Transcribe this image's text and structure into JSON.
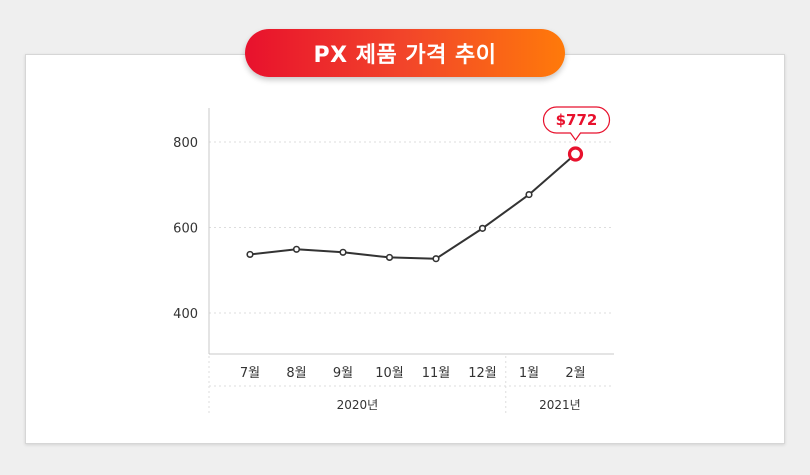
{
  "title": "PX 제품 가격 추이",
  "chart_data": {
    "type": "line",
    "categories": [
      "7월",
      "8월",
      "9월",
      "10월",
      "11월",
      "12월",
      "1월",
      "2월"
    ],
    "year_groups": [
      {
        "label": "2020년",
        "months": [
          "7월",
          "8월",
          "9월",
          "10월",
          "11월",
          "12월"
        ]
      },
      {
        "label": "2021년",
        "months": [
          "1월",
          "2월"
        ]
      }
    ],
    "series": [
      {
        "values": [
          537,
          549,
          542,
          530,
          527,
          598,
          677,
          772
        ]
      }
    ],
    "yticks": [
      400,
      600,
      800
    ],
    "ylim": [
      300,
      880
    ],
    "grid": true,
    "highlight": {
      "index": 7,
      "label": "$772"
    },
    "colors": {
      "line": "#333333",
      "highlight": "#e8112d",
      "grid": "#dddddd"
    }
  }
}
